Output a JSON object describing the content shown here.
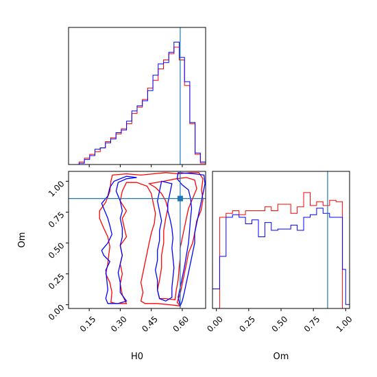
{
  "chart_data": [
    {
      "type": "histogram",
      "panel": "H0 marginal",
      "bin_edges": [
        0.05,
        0.0755,
        0.101,
        0.1265,
        0.152,
        0.1775,
        0.203,
        0.2285,
        0.254,
        0.2795,
        0.305,
        0.3305,
        0.356,
        0.3815,
        0.407,
        0.4325,
        0.458,
        0.4835,
        0.509,
        0.5345,
        0.56,
        0.5855,
        0.611,
        0.6365,
        0.662,
        0.6875,
        0.713
      ],
      "series": [
        {
          "name": "red",
          "color": "#ff0000",
          "values": [
            0,
            0,
            0.02,
            0.05,
            0.08,
            0.1,
            0.13,
            0.18,
            0.21,
            0.24,
            0.28,
            0.32,
            0.4,
            0.45,
            0.51,
            0.6,
            0.66,
            0.75,
            0.82,
            0.87,
            0.92,
            0.82,
            0.62,
            0.32,
            0.08,
            0.01
          ]
        },
        {
          "name": "blue",
          "color": "#0000ff",
          "values": [
            0,
            0,
            0.01,
            0.04,
            0.07,
            0.12,
            0.13,
            0.17,
            0.2,
            0.25,
            0.27,
            0.34,
            0.42,
            0.46,
            0.5,
            0.58,
            0.7,
            0.79,
            0.8,
            0.88,
            0.96,
            0.84,
            0.65,
            0.33,
            0.09,
            0.02
          ]
        }
      ],
      "truth_line": {
        "x": 0.59,
        "color": "#1f77b4"
      }
    },
    {
      "type": "contour",
      "panel": "H0 vs Om",
      "xlabel": "H0",
      "ylabel": "Om",
      "xlim": [
        0.05,
        0.713
      ],
      "ylim": [
        -0.03,
        1.08
      ],
      "xticks": [
        "0.15",
        "0.30",
        "0.45",
        "0.60"
      ],
      "yticks": [
        "0.00",
        "0.25",
        "0.50",
        "0.75",
        "1.00"
      ],
      "truth_point": {
        "x": 0.59,
        "y": 0.86,
        "color": "#1f77b4"
      },
      "series": [
        {
          "name": "red",
          "color": "#ff0000",
          "contours": [
            [
              [
                0.262,
                1.05
              ],
              [
                0.33,
                1.06
              ],
              [
                0.4,
                1.05
              ],
              [
                0.46,
                1.06
              ],
              [
                0.52,
                1.07
              ],
              [
                0.58,
                1.06
              ],
              [
                0.64,
                1.07
              ],
              [
                0.68,
                1.07
              ],
              [
                0.7,
                1.02
              ],
              [
                0.693,
                0.93
              ],
              [
                0.7,
                0.85
              ],
              [
                0.69,
                0.76
              ],
              [
                0.67,
                0.68
              ],
              [
                0.66,
                0.58
              ],
              [
                0.65,
                0.5
              ],
              [
                0.63,
                0.42
              ],
              [
                0.62,
                0.33
              ],
              [
                0.61,
                0.25
              ],
              [
                0.6,
                0.17
              ],
              [
                0.59,
                0.09
              ],
              [
                0.575,
                0.02
              ],
              [
                0.59,
                -0.01
              ],
              [
                0.54,
                0.0
              ],
              [
                0.48,
                0.01
              ],
              [
                0.42,
                0.01
              ],
              [
                0.4,
                0.03
              ],
              [
                0.41,
                0.1
              ],
              [
                0.4,
                0.18
              ],
              [
                0.41,
                0.26
              ],
              [
                0.42,
                0.34
              ],
              [
                0.43,
                0.42
              ],
              [
                0.44,
                0.5
              ],
              [
                0.45,
                0.58
              ],
              [
                0.465,
                0.66
              ],
              [
                0.47,
                0.74
              ],
              [
                0.46,
                0.82
              ],
              [
                0.45,
                0.9
              ],
              [
                0.43,
                0.96
              ],
              [
                0.38,
                0.99
              ],
              [
                0.33,
                0.99
              ],
              [
                0.31,
                0.92
              ],
              [
                0.3,
                0.84
              ],
              [
                0.33,
                0.76
              ],
              [
                0.31,
                0.7
              ],
              [
                0.32,
                0.62
              ],
              [
                0.33,
                0.55
              ],
              [
                0.3,
                0.48
              ],
              [
                0.31,
                0.4
              ],
              [
                0.3,
                0.33
              ],
              [
                0.31,
                0.25
              ],
              [
                0.3,
                0.17
              ],
              [
                0.31,
                0.08
              ],
              [
                0.33,
                0.01
              ],
              [
                0.28,
                0.01
              ],
              [
                0.255,
                0.02
              ],
              [
                0.26,
                0.1
              ],
              [
                0.25,
                0.18
              ],
              [
                0.23,
                0.25
              ],
              [
                0.24,
                0.33
              ],
              [
                0.245,
                0.41
              ],
              [
                0.25,
                0.47
              ],
              [
                0.24,
                0.55
              ],
              [
                0.22,
                0.62
              ],
              [
                0.2,
                0.7
              ],
              [
                0.2,
                0.76
              ],
              [
                0.23,
                0.83
              ],
              [
                0.25,
                0.92
              ],
              [
                0.255,
                1.0
              ],
              [
                0.262,
                1.05
              ]
            ],
            [
              [
                0.44,
                0.98
              ],
              [
                0.51,
                1.0
              ],
              [
                0.57,
                1.02
              ],
              [
                0.62,
                1.03
              ],
              [
                0.66,
                1.01
              ],
              [
                0.67,
                0.94
              ],
              [
                0.65,
                0.86
              ],
              [
                0.63,
                0.78
              ],
              [
                0.62,
                0.7
              ],
              [
                0.61,
                0.62
              ],
              [
                0.6,
                0.54
              ],
              [
                0.59,
                0.46
              ],
              [
                0.59,
                0.38
              ],
              [
                0.585,
                0.3
              ],
              [
                0.58,
                0.2
              ],
              [
                0.57,
                0.11
              ],
              [
                0.565,
                0.04
              ],
              [
                0.52,
                0.05
              ],
              [
                0.49,
                0.05
              ],
              [
                0.48,
                0.12
              ],
              [
                0.49,
                0.2
              ],
              [
                0.5,
                0.3
              ],
              [
                0.5,
                0.4
              ],
              [
                0.51,
                0.5
              ],
              [
                0.51,
                0.6
              ],
              [
                0.52,
                0.7
              ],
              [
                0.53,
                0.78
              ],
              [
                0.52,
                0.84
              ],
              [
                0.5,
                0.9
              ],
              [
                0.47,
                0.95
              ],
              [
                0.44,
                0.98
              ]
            ]
          ]
        },
        {
          "name": "blue",
          "color": "#0000ff",
          "contours": [
            [
              [
                0.58,
                1.07
              ],
              [
                0.66,
                1.06
              ],
              [
                0.705,
                1.05
              ],
              [
                0.71,
                0.98
              ],
              [
                0.7,
                0.9
              ],
              [
                0.69,
                0.82
              ],
              [
                0.68,
                0.74
              ],
              [
                0.67,
                0.66
              ],
              [
                0.66,
                0.58
              ],
              [
                0.66,
                0.5
              ],
              [
                0.65,
                0.42
              ],
              [
                0.64,
                0.34
              ],
              [
                0.63,
                0.26
              ],
              [
                0.62,
                0.18
              ],
              [
                0.61,
                0.1
              ],
              [
                0.6,
                0.03
              ],
              [
                0.59,
                -0.01
              ],
              [
                0.58,
                0.06
              ],
              [
                0.59,
                0.14
              ],
              [
                0.6,
                0.22
              ],
              [
                0.61,
                0.3
              ],
              [
                0.62,
                0.4
              ],
              [
                0.63,
                0.5
              ],
              [
                0.635,
                0.6
              ],
              [
                0.64,
                0.7
              ],
              [
                0.645,
                0.78
              ],
              [
                0.64,
                0.86
              ],
              [
                0.63,
                0.93
              ],
              [
                0.6,
                0.97
              ],
              [
                0.575,
                1.02
              ],
              [
                0.58,
                1.07
              ]
            ],
            [
              [
                0.5,
                1.0
              ],
              [
                0.55,
                0.98
              ],
              [
                0.54,
                0.9
              ],
              [
                0.53,
                0.82
              ],
              [
                0.53,
                0.76
              ],
              [
                0.54,
                0.7
              ],
              [
                0.55,
                0.62
              ],
              [
                0.555,
                0.54
              ],
              [
                0.55,
                0.46
              ],
              [
                0.555,
                0.38
              ],
              [
                0.56,
                0.3
              ],
              [
                0.555,
                0.22
              ],
              [
                0.55,
                0.14
              ],
              [
                0.55,
                0.06
              ],
              [
                0.52,
                0.03
              ],
              [
                0.49,
                0.05
              ],
              [
                0.48,
                0.12
              ],
              [
                0.48,
                0.2
              ],
              [
                0.47,
                0.28
              ],
              [
                0.48,
                0.36
              ],
              [
                0.48,
                0.44
              ],
              [
                0.49,
                0.52
              ],
              [
                0.49,
                0.6
              ],
              [
                0.5,
                0.68
              ],
              [
                0.49,
                0.76
              ],
              [
                0.48,
                0.84
              ],
              [
                0.49,
                0.92
              ],
              [
                0.5,
                1.0
              ]
            ],
            [
              [
                0.38,
                1.03
              ],
              [
                0.33,
                1.02
              ],
              [
                0.29,
                0.99
              ],
              [
                0.28,
                0.92
              ],
              [
                0.3,
                0.84
              ],
              [
                0.31,
                0.76
              ],
              [
                0.3,
                0.7
              ],
              [
                0.31,
                0.62
              ],
              [
                0.31,
                0.55
              ],
              [
                0.3,
                0.48
              ],
              [
                0.31,
                0.4
              ],
              [
                0.3,
                0.33
              ],
              [
                0.29,
                0.26
              ],
              [
                0.3,
                0.18
              ],
              [
                0.3,
                0.1
              ],
              [
                0.33,
                0.03
              ],
              [
                0.29,
                0.01
              ],
              [
                0.24,
                0.01
              ],
              [
                0.23,
                0.05
              ],
              [
                0.24,
                0.12
              ],
              [
                0.235,
                0.2
              ],
              [
                0.23,
                0.28
              ],
              [
                0.25,
                0.35
              ],
              [
                0.22,
                0.4
              ],
              [
                0.21,
                0.44
              ],
              [
                0.24,
                0.5
              ],
              [
                0.26,
                0.57
              ],
              [
                0.25,
                0.64
              ],
              [
                0.24,
                0.7
              ],
              [
                0.225,
                0.76
              ],
              [
                0.21,
                0.82
              ],
              [
                0.24,
                0.88
              ],
              [
                0.25,
                0.95
              ],
              [
                0.27,
                1.0
              ],
              [
                0.33,
                1.04
              ],
              [
                0.38,
                1.03
              ]
            ]
          ]
        }
      ]
    },
    {
      "type": "histogram",
      "panel": "Om marginal",
      "xlabel": "Om",
      "xlim": [
        -0.03,
        1.03
      ],
      "xticks": [
        "0.00",
        "0.25",
        "0.50",
        "0.75",
        "1.00"
      ],
      "bin_edges": [
        -0.03,
        0.0,
        0.025,
        0.075,
        0.125,
        0.175,
        0.225,
        0.275,
        0.325,
        0.375,
        0.425,
        0.475,
        0.525,
        0.575,
        0.625,
        0.675,
        0.725,
        0.775,
        0.825,
        0.875,
        0.925,
        0.975,
        1.0,
        1.03
      ],
      "series": [
        {
          "name": "red",
          "color": "#ff0000",
          "values": [
            0,
            0,
            0.7,
            0.73,
            0.75,
            0.72,
            0.75,
            0.75,
            0.75,
            0.78,
            0.75,
            0.8,
            0.8,
            0.73,
            0.78,
            0.89,
            0.79,
            0.82,
            0.79,
            0.83,
            0.82,
            0.0,
            0
          ]
        },
        {
          "name": "blue",
          "color": "#0000ff",
          "values": [
            0.15,
            0.15,
            0.4,
            0.7,
            0.72,
            0.7,
            0.65,
            0.68,
            0.55,
            0.66,
            0.6,
            0.61,
            0.61,
            0.64,
            0.6,
            0.7,
            0.72,
            0.77,
            0.73,
            0.7,
            0.7,
            0.3,
            0.03
          ]
        }
      ],
      "truth_line": {
        "x": 0.86,
        "color": "#1f77b4"
      }
    }
  ]
}
